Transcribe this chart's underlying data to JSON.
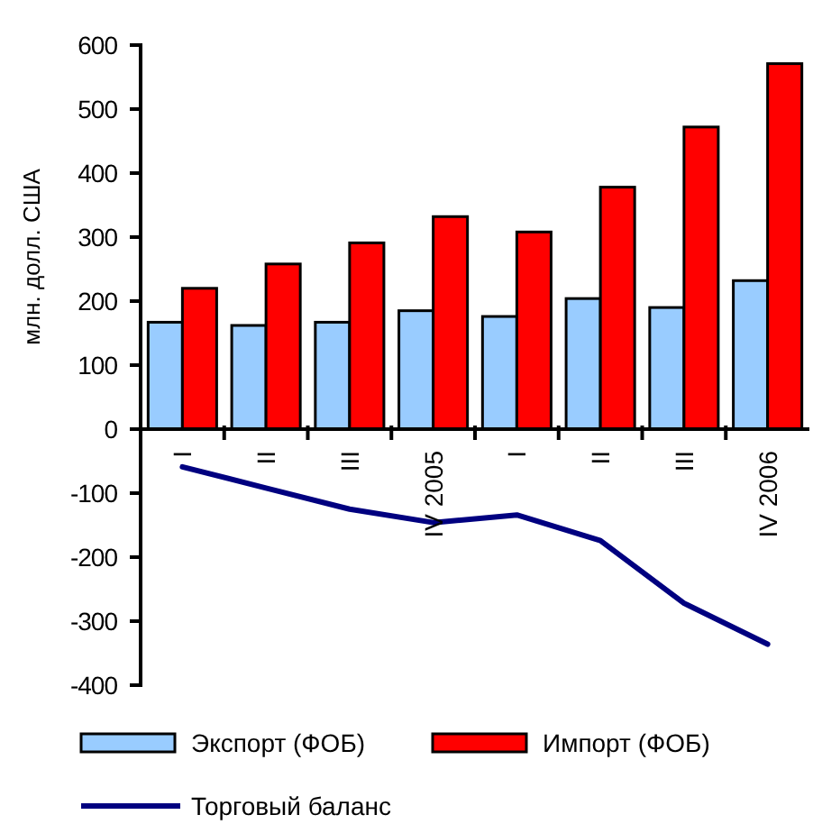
{
  "chart_data": {
    "type": "bar",
    "ylabel": "млн. долл. США",
    "categories": [
      "I",
      "II",
      "III",
      "IV 2005",
      "I",
      "II",
      "III",
      "IV 2006"
    ],
    "series": [
      {
        "name": "Экспорт (ФОБ)",
        "color": "#99ccff",
        "values": [
          167,
          162,
          167,
          185,
          176,
          204,
          190,
          232
        ]
      },
      {
        "name": "Импорт (ФОБ)",
        "color": "#ff0000",
        "values": [
          220,
          258,
          291,
          332,
          308,
          378,
          472,
          571
        ]
      },
      {
        "name": "Торговый баланс",
        "type": "line",
        "color": "#000080",
        "values": [
          -59,
          -92,
          -125,
          -146,
          -134,
          -174,
          -272,
          -336
        ]
      }
    ],
    "ylim": [
      -400,
      600
    ],
    "yticks": [
      -400,
      -300,
      -200,
      -100,
      0,
      100,
      200,
      300,
      400,
      500,
      600
    ],
    "grid": false,
    "legend": "bottom"
  }
}
